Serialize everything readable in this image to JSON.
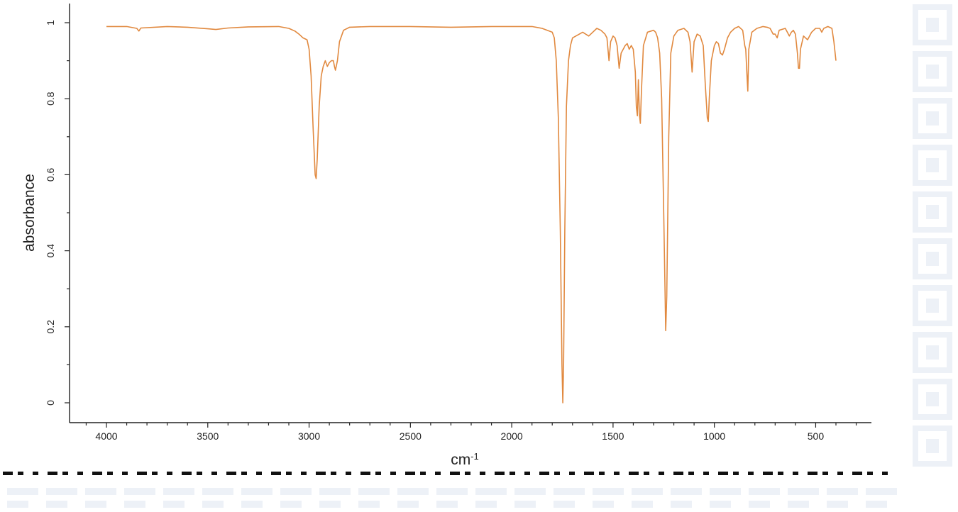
{
  "chart_data": {
    "type": "line",
    "xlabel": "cm",
    "xlabel_superscript": "-1",
    "ylabel": "absorbance",
    "xlim": [
      4000,
      400
    ],
    "x_reversed": true,
    "ylim": [
      0,
      1
    ],
    "x_ticks": [
      "4000",
      "3500",
      "3000",
      "2500",
      "2000",
      "1500",
      "1000",
      "500"
    ],
    "y_ticks": [
      "0",
      "0.2",
      "0.4",
      "0.6",
      "0.8",
      "1"
    ],
    "grid": false,
    "legend": "none",
    "series": [
      {
        "color": "#E1893F",
        "points": [
          [
            4000,
            0.99
          ],
          [
            3900,
            0.99
          ],
          [
            3850,
            0.985
          ],
          [
            3840,
            0.978
          ],
          [
            3830,
            0.986
          ],
          [
            3700,
            0.99
          ],
          [
            3600,
            0.988
          ],
          [
            3500,
            0.984
          ],
          [
            3460,
            0.982
          ],
          [
            3400,
            0.986
          ],
          [
            3300,
            0.989
          ],
          [
            3150,
            0.99
          ],
          [
            3100,
            0.985
          ],
          [
            3070,
            0.978
          ],
          [
            3050,
            0.97
          ],
          [
            3030,
            0.96
          ],
          [
            3010,
            0.955
          ],
          [
            3000,
            0.93
          ],
          [
            2990,
            0.86
          ],
          [
            2980,
            0.72
          ],
          [
            2970,
            0.6
          ],
          [
            2965,
            0.59
          ],
          [
            2960,
            0.64
          ],
          [
            2950,
            0.78
          ],
          [
            2940,
            0.86
          ],
          [
            2930,
            0.885
          ],
          [
            2920,
            0.9
          ],
          [
            2910,
            0.885
          ],
          [
            2900,
            0.895
          ],
          [
            2890,
            0.9
          ],
          [
            2880,
            0.9
          ],
          [
            2875,
            0.885
          ],
          [
            2870,
            0.875
          ],
          [
            2860,
            0.9
          ],
          [
            2850,
            0.95
          ],
          [
            2830,
            0.98
          ],
          [
            2800,
            0.988
          ],
          [
            2700,
            0.99
          ],
          [
            2500,
            0.99
          ],
          [
            2300,
            0.988
          ],
          [
            2100,
            0.99
          ],
          [
            1900,
            0.99
          ],
          [
            1850,
            0.985
          ],
          [
            1800,
            0.975
          ],
          [
            1790,
            0.96
          ],
          [
            1780,
            0.9
          ],
          [
            1770,
            0.75
          ],
          [
            1760,
            0.45
          ],
          [
            1752,
            0.1
          ],
          [
            1748,
            0.0
          ],
          [
            1744,
            0.1
          ],
          [
            1738,
            0.45
          ],
          [
            1730,
            0.78
          ],
          [
            1720,
            0.9
          ],
          [
            1710,
            0.94
          ],
          [
            1700,
            0.96
          ],
          [
            1650,
            0.975
          ],
          [
            1620,
            0.965
          ],
          [
            1600,
            0.975
          ],
          [
            1580,
            0.985
          ],
          [
            1560,
            0.98
          ],
          [
            1540,
            0.97
          ],
          [
            1530,
            0.96
          ],
          [
            1520,
            0.9
          ],
          [
            1512,
            0.95
          ],
          [
            1500,
            0.965
          ],
          [
            1490,
            0.96
          ],
          [
            1480,
            0.94
          ],
          [
            1470,
            0.88
          ],
          [
            1460,
            0.92
          ],
          [
            1440,
            0.94
          ],
          [
            1430,
            0.945
          ],
          [
            1420,
            0.93
          ],
          [
            1410,
            0.94
          ],
          [
            1400,
            0.93
          ],
          [
            1390,
            0.87
          ],
          [
            1385,
            0.78
          ],
          [
            1380,
            0.755
          ],
          [
            1375,
            0.85
          ],
          [
            1370,
            0.76
          ],
          [
            1365,
            0.735
          ],
          [
            1360,
            0.82
          ],
          [
            1350,
            0.94
          ],
          [
            1330,
            0.975
          ],
          [
            1300,
            0.98
          ],
          [
            1290,
            0.975
          ],
          [
            1280,
            0.96
          ],
          [
            1270,
            0.92
          ],
          [
            1260,
            0.8
          ],
          [
            1250,
            0.5
          ],
          [
            1240,
            0.19
          ],
          [
            1235,
            0.28
          ],
          [
            1225,
            0.7
          ],
          [
            1215,
            0.92
          ],
          [
            1200,
            0.965
          ],
          [
            1180,
            0.98
          ],
          [
            1150,
            0.985
          ],
          [
            1130,
            0.975
          ],
          [
            1120,
            0.95
          ],
          [
            1110,
            0.87
          ],
          [
            1100,
            0.95
          ],
          [
            1085,
            0.97
          ],
          [
            1070,
            0.965
          ],
          [
            1055,
            0.94
          ],
          [
            1045,
            0.84
          ],
          [
            1035,
            0.75
          ],
          [
            1030,
            0.74
          ],
          [
            1025,
            0.8
          ],
          [
            1015,
            0.9
          ],
          [
            1000,
            0.94
          ],
          [
            990,
            0.95
          ],
          [
            980,
            0.945
          ],
          [
            970,
            0.92
          ],
          [
            960,
            0.915
          ],
          [
            950,
            0.93
          ],
          [
            935,
            0.96
          ],
          [
            920,
            0.975
          ],
          [
            900,
            0.985
          ],
          [
            880,
            0.99
          ],
          [
            860,
            0.98
          ],
          [
            850,
            0.94
          ],
          [
            845,
            0.93
          ],
          [
            840,
            0.87
          ],
          [
            835,
            0.82
          ],
          [
            830,
            0.93
          ],
          [
            815,
            0.975
          ],
          [
            790,
            0.985
          ],
          [
            760,
            0.99
          ],
          [
            740,
            0.988
          ],
          [
            725,
            0.985
          ],
          [
            710,
            0.97
          ],
          [
            700,
            0.97
          ],
          [
            690,
            0.96
          ],
          [
            680,
            0.98
          ],
          [
            650,
            0.985
          ],
          [
            640,
            0.975
          ],
          [
            630,
            0.965
          ],
          [
            620,
            0.975
          ],
          [
            610,
            0.98
          ],
          [
            600,
            0.97
          ],
          [
            590,
            0.92
          ],
          [
            585,
            0.88
          ],
          [
            580,
            0.88
          ],
          [
            575,
            0.93
          ],
          [
            560,
            0.965
          ],
          [
            540,
            0.955
          ],
          [
            520,
            0.975
          ],
          [
            500,
            0.985
          ],
          [
            480,
            0.985
          ],
          [
            470,
            0.975
          ],
          [
            460,
            0.985
          ],
          [
            440,
            0.99
          ],
          [
            420,
            0.985
          ],
          [
            410,
            0.95
          ],
          [
            400,
            0.9
          ]
        ]
      }
    ]
  },
  "watermark_color": "#EDF1F7"
}
